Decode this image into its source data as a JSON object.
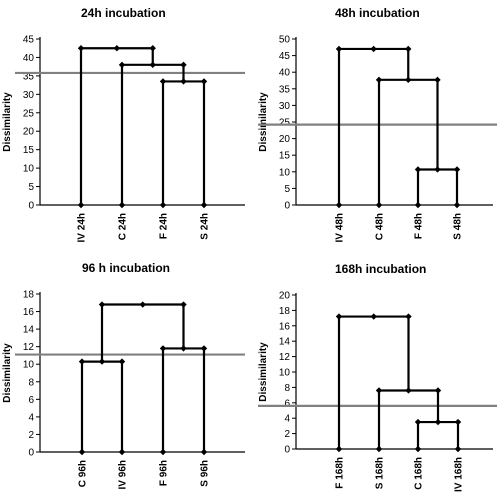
{
  "chart_data": [
    {
      "type": "dendrogram",
      "title": "24h incubation",
      "ylabel": "Dissimilarity",
      "ylim": [
        0,
        45
      ],
      "yticks": [
        0,
        5,
        10,
        15,
        20,
        25,
        30,
        35,
        40,
        45
      ],
      "leaves": [
        "IV 24h",
        "C 24h",
        "F 24h",
        "S 24h"
      ],
      "merges": [
        {
          "left": 2,
          "right": 3,
          "height": 33.5
        },
        {
          "left": 1,
          "right": "m1",
          "height": 38.0
        },
        {
          "left": 0,
          "right": "m2",
          "height": 42.5
        }
      ],
      "threshold": 35.8
    },
    {
      "type": "dendrogram",
      "title": "48h incubation",
      "ylabel": "Dissimilarity",
      "ylim": [
        0,
        50
      ],
      "yticks": [
        0,
        5,
        10,
        15,
        20,
        25,
        30,
        35,
        40,
        45,
        50
      ],
      "leaves": [
        "IV 48h",
        "C 48h",
        "F 48h",
        "S 48h"
      ],
      "merges": [
        {
          "left": 2,
          "right": 3,
          "height": 10.7
        },
        {
          "left": 1,
          "right": "m1",
          "height": 37.7
        },
        {
          "left": 0,
          "right": "m2",
          "height": 47.0
        }
      ],
      "threshold": 24.2
    },
    {
      "type": "dendrogram",
      "title": "96 h incubation",
      "ylabel": "Dissimilarity",
      "ylim": [
        0,
        18
      ],
      "yticks": [
        0,
        2,
        4,
        6,
        8,
        10,
        12,
        14,
        16,
        18
      ],
      "leaves": [
        "C 96h",
        "IV 96h",
        "F 96h",
        "S 96h"
      ],
      "merges": [
        {
          "left": 0,
          "right": 1,
          "height": 10.3
        },
        {
          "left": 2,
          "right": 3,
          "height": 11.8
        },
        {
          "left": "m1",
          "right": "m2",
          "height": 16.8
        }
      ],
      "threshold": 11.1
    },
    {
      "type": "dendrogram",
      "title": "168h incubation",
      "ylabel": "Dissimilarity",
      "ylim": [
        0,
        20
      ],
      "yticks": [
        0,
        2,
        4,
        6,
        8,
        10,
        12,
        14,
        16,
        18,
        20
      ],
      "leaves": [
        "F 168h",
        "S 168h",
        "C 168h",
        "IV 168h"
      ],
      "merges": [
        {
          "left": 2,
          "right": 3,
          "height": 3.5
        },
        {
          "left": 1,
          "right": "m1",
          "height": 7.6
        },
        {
          "left": 0,
          "right": "m2",
          "height": 17.2
        }
      ],
      "threshold": 5.6
    }
  ],
  "colors": {
    "branch": "#000000",
    "threshold": "#808080",
    "axis": "#000000"
  }
}
